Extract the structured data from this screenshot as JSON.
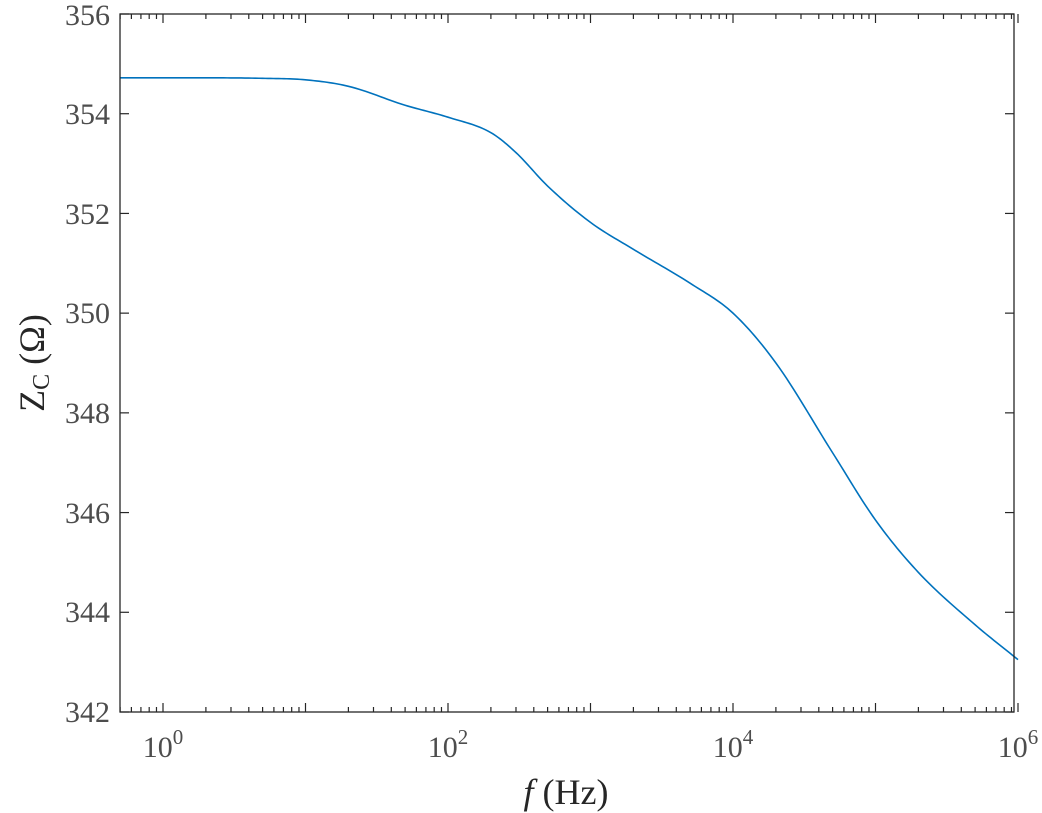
{
  "chart_data": {
    "type": "line",
    "x_scale": "log",
    "xlim": [
      0.5,
      1000000
    ],
    "ylim": [
      342,
      356
    ],
    "grid": false,
    "x_ticks": [
      {
        "base": "10",
        "exp": "0"
      },
      {
        "base": "10",
        "exp": "2"
      },
      {
        "base": "10",
        "exp": "4"
      },
      {
        "base": "10",
        "exp": "6"
      }
    ],
    "y_ticks": [
      "342",
      "344",
      "346",
      "348",
      "350",
      "352",
      "354",
      "356"
    ],
    "xlabel": {
      "italic": "f",
      "rest": " (Hz)"
    },
    "ylabel": {
      "main": "Z",
      "sub": "C",
      "rest": " (Ω)"
    },
    "line_color": "#0072bd",
    "series": [
      {
        "x": [
          0.5,
          1,
          2,
          5,
          10,
          20,
          50,
          100,
          200,
          300,
          500,
          1000,
          2000,
          5000,
          10000,
          20000,
          50000,
          100000,
          200000,
          500000,
          1000000
        ],
        "values": [
          354.72,
          354.72,
          354.72,
          354.71,
          354.68,
          354.55,
          354.17,
          353.93,
          353.62,
          353.22,
          352.55,
          351.82,
          351.28,
          350.6,
          350.0,
          349.0,
          347.2,
          345.85,
          344.8,
          343.75,
          343.05
        ]
      }
    ]
  }
}
